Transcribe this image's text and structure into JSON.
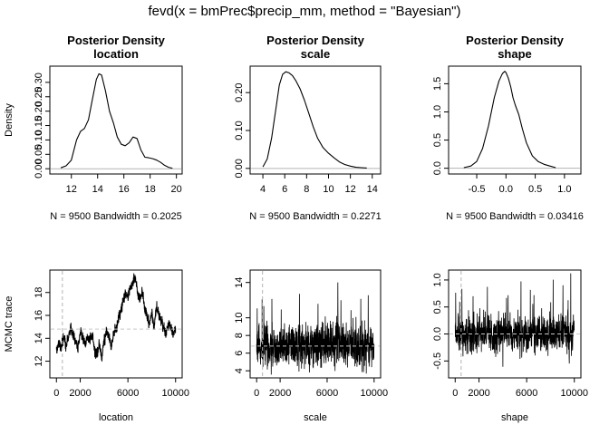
{
  "figure": {
    "title": "fevd(x = bmPrec$precip_mm, method = \"Bayesian\")"
  },
  "chart_data": [
    {
      "type": "line",
      "title": "Posterior Density",
      "subtitle": "location",
      "ylabel": "Density",
      "xlabel": "N = 9500   Bandwidth = 0.2025",
      "xlim": [
        10.5,
        20.3
      ],
      "ylim": [
        -0.012,
        0.35
      ],
      "xticks": [
        12,
        14,
        16,
        18,
        20
      ],
      "yticks": [
        0.0,
        0.05,
        0.1,
        0.15,
        0.2,
        0.25,
        0.3
      ],
      "ytick_labels": [
        "0.00",
        "0.05",
        "0.10",
        "0.15",
        "0.20",
        "0.25",
        "0.30"
      ],
      "baseline": 0,
      "x": [
        11.2,
        11.6,
        12.0,
        12.4,
        12.7,
        13.0,
        13.3,
        13.6,
        13.9,
        14.1,
        14.3,
        14.6,
        14.9,
        15.2,
        15.5,
        15.8,
        16.1,
        16.4,
        16.7,
        17.0,
        17.3,
        17.6,
        17.9,
        18.2,
        18.5,
        18.8,
        19.1,
        19.4,
        19.7
      ],
      "y": [
        0.003,
        0.01,
        0.03,
        0.1,
        0.13,
        0.14,
        0.17,
        0.24,
        0.31,
        0.33,
        0.325,
        0.27,
        0.2,
        0.16,
        0.11,
        0.085,
        0.08,
        0.09,
        0.11,
        0.105,
        0.065,
        0.04,
        0.038,
        0.035,
        0.03,
        0.022,
        0.012,
        0.005,
        0.002
      ]
    },
    {
      "type": "line",
      "title": "Posterior Density",
      "subtitle": "scale",
      "xlabel": "N = 9500   Bandwidth = 0.2271",
      "xlim": [
        3.0,
        14.6
      ],
      "ylim": [
        -0.01,
        0.265
      ],
      "xticks": [
        4,
        6,
        8,
        10,
        12,
        14
      ],
      "yticks": [
        0.0,
        0.1,
        0.2
      ],
      "ytick_labels": [
        "0.00",
        "0.10",
        "0.20"
      ],
      "baseline": 0,
      "x": [
        4.0,
        4.4,
        4.8,
        5.2,
        5.5,
        5.8,
        6.1,
        6.4,
        6.7,
        7.0,
        7.4,
        7.8,
        8.2,
        8.6,
        9.0,
        9.5,
        10.0,
        10.5,
        11.0,
        11.5,
        12.0,
        12.5,
        13.0,
        13.5
      ],
      "y": [
        0.004,
        0.025,
        0.08,
        0.16,
        0.22,
        0.248,
        0.255,
        0.252,
        0.245,
        0.232,
        0.21,
        0.18,
        0.145,
        0.11,
        0.08,
        0.055,
        0.04,
        0.028,
        0.017,
        0.01,
        0.006,
        0.003,
        0.002,
        0.001
      ]
    },
    {
      "type": "line",
      "title": "Posterior Density",
      "subtitle": "shape",
      "xlabel": "N = 9500   Bandwidth = 0.03416",
      "xlim": [
        -0.95,
        1.25
      ],
      "ylim": [
        -0.07,
        1.78
      ],
      "xticks": [
        -0.5,
        0.0,
        0.5,
        1.0
      ],
      "xtick_labels": [
        "-0.5",
        "0.0",
        "0.5",
        "1.0"
      ],
      "yticks": [
        0.0,
        0.5,
        1.0,
        1.5
      ],
      "ytick_labels": [
        "0.0",
        "0.5",
        "1.0",
        "1.5"
      ],
      "baseline": 0,
      "x": [
        -0.72,
        -0.6,
        -0.5,
        -0.4,
        -0.3,
        -0.2,
        -0.12,
        -0.06,
        -0.02,
        0.0,
        0.04,
        0.08,
        0.12,
        0.16,
        0.22,
        0.28,
        0.35,
        0.45,
        0.55,
        0.65,
        0.75,
        0.85
      ],
      "y": [
        0.01,
        0.04,
        0.12,
        0.35,
        0.75,
        1.25,
        1.55,
        1.68,
        1.72,
        1.7,
        1.6,
        1.45,
        1.25,
        1.12,
        0.95,
        0.7,
        0.45,
        0.22,
        0.12,
        0.07,
        0.04,
        0.01
      ]
    },
    {
      "type": "line",
      "ylabel": "MCMC trace",
      "xlabel": "location",
      "xlim": [
        -400,
        10400
      ],
      "ylim": [
        10.7,
        19.8
      ],
      "xticks": [
        0,
        2000,
        6000,
        10000
      ],
      "yticks": [
        12,
        14,
        16,
        18
      ],
      "burn_in": 500,
      "mean_line": 14.8,
      "x": [
        0,
        200,
        400,
        600,
        800,
        1000,
        1200,
        1400,
        1600,
        1800,
        2000,
        2200,
        2400,
        2600,
        2800,
        3000,
        3200,
        3400,
        3600,
        3800,
        4000,
        4200,
        4400,
        4600,
        4800,
        5000,
        5200,
        5400,
        5600,
        5800,
        6000,
        6200,
        6400,
        6600,
        6800,
        7000,
        7200,
        7400,
        7600,
        7800,
        8000,
        8200,
        8400,
        8600,
        8800,
        9000,
        9200,
        9400,
        9600,
        9800,
        10000
      ],
      "y": [
        12.8,
        13.6,
        13.0,
        14.2,
        13.4,
        14.0,
        15.0,
        14.3,
        13.7,
        13.2,
        14.6,
        14.1,
        13.4,
        14.0,
        13.8,
        14.4,
        12.9,
        12.5,
        13.5,
        12.3,
        13.8,
        14.5,
        14.1,
        13.4,
        14.4,
        14.8,
        15.6,
        16.5,
        17.2,
        18.0,
        17.5,
        18.3,
        18.9,
        19.4,
        18.0,
        17.4,
        18.1,
        16.6,
        16.0,
        15.3,
        16.2,
        15.0,
        16.8,
        16.1,
        15.6,
        14.9,
        14.4,
        15.3,
        14.8,
        14.4,
        15.0
      ],
      "noise": 0.35
    },
    {
      "type": "line",
      "xlabel": "scale",
      "xlim": [
        -400,
        10400
      ],
      "ylim": [
        3.4,
        15.2
      ],
      "xticks": [
        0,
        2000,
        6000,
        10000
      ],
      "yticks": [
        4,
        6,
        8,
        10,
        14
      ],
      "burn_in": 500,
      "mean_line": 6.8,
      "x": [
        0,
        1000,
        2000,
        3000,
        4000,
        5000,
        6000,
        7000,
        8000,
        9000,
        10000
      ],
      "y": [
        6.6,
        6.9,
        6.7,
        7.0,
        6.6,
        6.9,
        7.2,
        7.0,
        6.8,
        6.7,
        6.8
      ],
      "noise": 1.7
    },
    {
      "type": "line",
      "xlabel": "shape",
      "xlim": [
        -400,
        10400
      ],
      "ylim": [
        -0.78,
        1.15
      ],
      "xticks": [
        0,
        2000,
        6000,
        10000
      ],
      "yticks": [
        -0.5,
        0.0,
        0.5,
        1.0
      ],
      "ytick_labels": [
        "-0.5",
        "0.0",
        "0.5",
        "1.0"
      ],
      "burn_in": 500,
      "mean_line": 0.0,
      "x": [
        0,
        1000,
        2000,
        3000,
        4000,
        5000,
        6000,
        7000,
        8000,
        9000,
        10000
      ],
      "y": [
        0.02,
        -0.02,
        0.01,
        -0.03,
        0.02,
        0.0,
        -0.02,
        0.03,
        -0.01,
        0.01,
        0.0
      ],
      "noise": 0.24
    }
  ]
}
